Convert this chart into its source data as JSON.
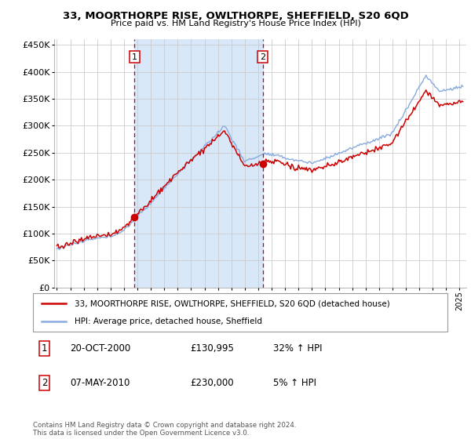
{
  "title": "33, MOORTHORPE RISE, OWLTHORPE, SHEFFIELD, S20 6QD",
  "subtitle": "Price paid vs. HM Land Registry's House Price Index (HPI)",
  "legend_line1": "33, MOORTHORPE RISE, OWLTHORPE, SHEFFIELD, S20 6QD (detached house)",
  "legend_line2": "HPI: Average price, detached house, Sheffield",
  "footnote": "Contains HM Land Registry data © Crown copyright and database right 2024.\nThis data is licensed under the Open Government Licence v3.0.",
  "marker1_date": "20-OCT-2000",
  "marker1_price": "£130,995",
  "marker1_hpi": "32% ↑ HPI",
  "marker2_date": "07-MAY-2010",
  "marker2_price": "£230,000",
  "marker2_hpi": "5% ↑ HPI",
  "red_color": "#cc0000",
  "blue_color": "#88aadd",
  "shade_color": "#d8e8f8",
  "bg_color": "#ffffff",
  "grid_color": "#cccccc",
  "ylim": [
    0,
    460000
  ],
  "xlim_start": 1994.8,
  "xlim_end": 2025.5,
  "sale1_year": 2000.79,
  "sale2_year": 2010.33,
  "price1": 130995,
  "price2": 230000
}
